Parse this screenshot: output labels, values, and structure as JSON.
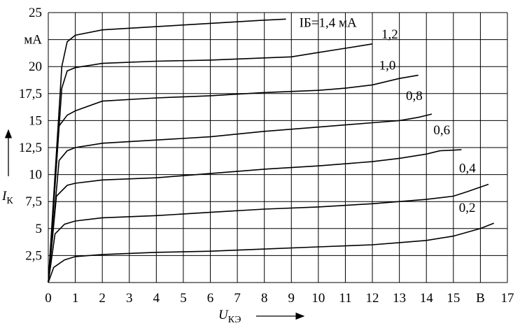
{
  "chart_data": {
    "type": "line",
    "y_label": {
      "symbol": "I",
      "subscript": "К"
    },
    "x_label": {
      "symbol": "U",
      "subscript": "КЭ"
    },
    "xlim": [
      0,
      17
    ],
    "ylim": [
      0,
      25
    ],
    "xticks": [
      0,
      1,
      2,
      3,
      4,
      5,
      6,
      7,
      8,
      9,
      10,
      11,
      12,
      13,
      14,
      15,
      {
        "value": 16,
        "label": "В"
      },
      17
    ],
    "yticks": [
      {
        "value": 2.5,
        "label": "2,5"
      },
      5,
      {
        "value": 7.5,
        "label": "7,5"
      },
      10,
      {
        "value": 12.5,
        "label": "12,5"
      },
      15,
      {
        "value": 17.5,
        "label": "17,5"
      },
      20,
      {
        "value": 22.5,
        "label": "мА"
      },
      25
    ],
    "grid": true,
    "color": "#000000",
    "series": [
      {
        "name": "IБ=1,4 мА",
        "x": [
          0,
          0.5,
          0.7,
          1,
          2,
          4,
          6,
          8,
          8.8
        ],
        "values": [
          0,
          20,
          22.3,
          22.9,
          23.4,
          23.7,
          24,
          24.3,
          24.4
        ]
      },
      {
        "name": "1,2",
        "x": [
          0,
          0.5,
          0.7,
          1,
          2,
          4,
          6,
          8,
          9,
          10,
          11,
          12
        ],
        "values": [
          0,
          18,
          19.6,
          19.9,
          20.3,
          20.5,
          20.6,
          20.8,
          20.9,
          21.3,
          21.7,
          22.1
        ]
      },
      {
        "name": "1,0",
        "x": [
          0,
          0.4,
          0.7,
          1,
          2,
          4,
          6,
          8,
          10,
          11,
          12,
          13,
          13.7
        ],
        "values": [
          0,
          14.5,
          15.5,
          15.9,
          16.8,
          17.1,
          17.3,
          17.6,
          17.8,
          18,
          18.3,
          18.9,
          19.2
        ]
      },
      {
        "name": "0,8",
        "x": [
          0,
          0.4,
          0.7,
          1,
          2,
          4,
          6,
          8,
          10,
          12,
          13,
          13.7,
          14.2
        ],
        "values": [
          0,
          11.3,
          12.2,
          12.5,
          12.9,
          13.2,
          13.5,
          14,
          14.4,
          14.8,
          15,
          15.3,
          15.6
        ]
      },
      {
        "name": "0,6",
        "x": [
          0,
          0.3,
          0.7,
          1,
          2,
          4,
          6,
          8,
          10,
          12,
          13,
          14,
          14.5,
          15.3
        ],
        "values": [
          0,
          8,
          9,
          9.2,
          9.5,
          9.7,
          10.1,
          10.5,
          10.8,
          11.2,
          11.5,
          11.9,
          12.2,
          12.3
        ]
      },
      {
        "name": "0,4",
        "x": [
          0,
          0.25,
          0.6,
          1,
          2,
          4,
          6,
          8,
          10,
          12,
          13,
          14,
          15,
          15.5,
          16.3
        ],
        "values": [
          0,
          4.5,
          5.4,
          5.7,
          6,
          6.2,
          6.5,
          6.8,
          7,
          7.3,
          7.5,
          7.7,
          8,
          8.4,
          9.1
        ]
      },
      {
        "name": "0,2",
        "x": [
          0,
          0.2,
          0.6,
          1,
          2,
          4,
          6,
          8,
          10,
          12,
          13,
          14,
          15,
          16,
          16.5
        ],
        "values": [
          0,
          1.4,
          2.1,
          2.4,
          2.6,
          2.8,
          2.9,
          3.1,
          3.3,
          3.5,
          3.7,
          3.9,
          4.3,
          5,
          5.5
        ]
      }
    ]
  }
}
